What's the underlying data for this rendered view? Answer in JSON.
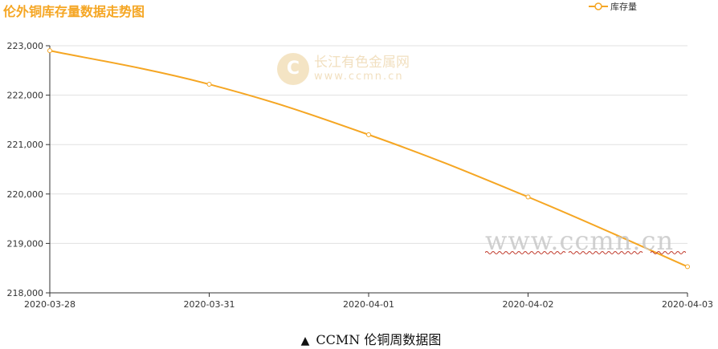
{
  "chart_data": {
    "type": "line",
    "title": "伦外铜库存量数据走势图",
    "x": [
      "2020-03-28",
      "2020-03-31",
      "2020-04-01",
      "2020-04-02",
      "2020-04-03"
    ],
    "series": [
      {
        "name": "库存量",
        "values": [
          222900,
          222220,
          221200,
          219940,
          218530
        ],
        "color": "#f5a623"
      }
    ],
    "xlabel": "",
    "ylabel": "",
    "ylim": [
      218000,
      223000
    ],
    "yticks": [
      "223,000",
      "222,000",
      "221,000",
      "220,000",
      "219,000",
      "218,000"
    ],
    "ytick_values": [
      223000,
      222000,
      221000,
      220000,
      219000,
      218000
    ],
    "grid": true,
    "legend_position": "top-right",
    "smooth": true
  },
  "watermark": {
    "logo_glyph": "C",
    "name": "长江有色金属网",
    "url": "www.ccmn.cn",
    "url_large": "www.ccmn.cn"
  },
  "caption": {
    "mark": "▲",
    "text": "CCMN 伦铜周数据图"
  },
  "colors": {
    "line": "#f5a623",
    "title": "#f5a623",
    "grid": "#e0e0e0",
    "axis": "#333333"
  }
}
